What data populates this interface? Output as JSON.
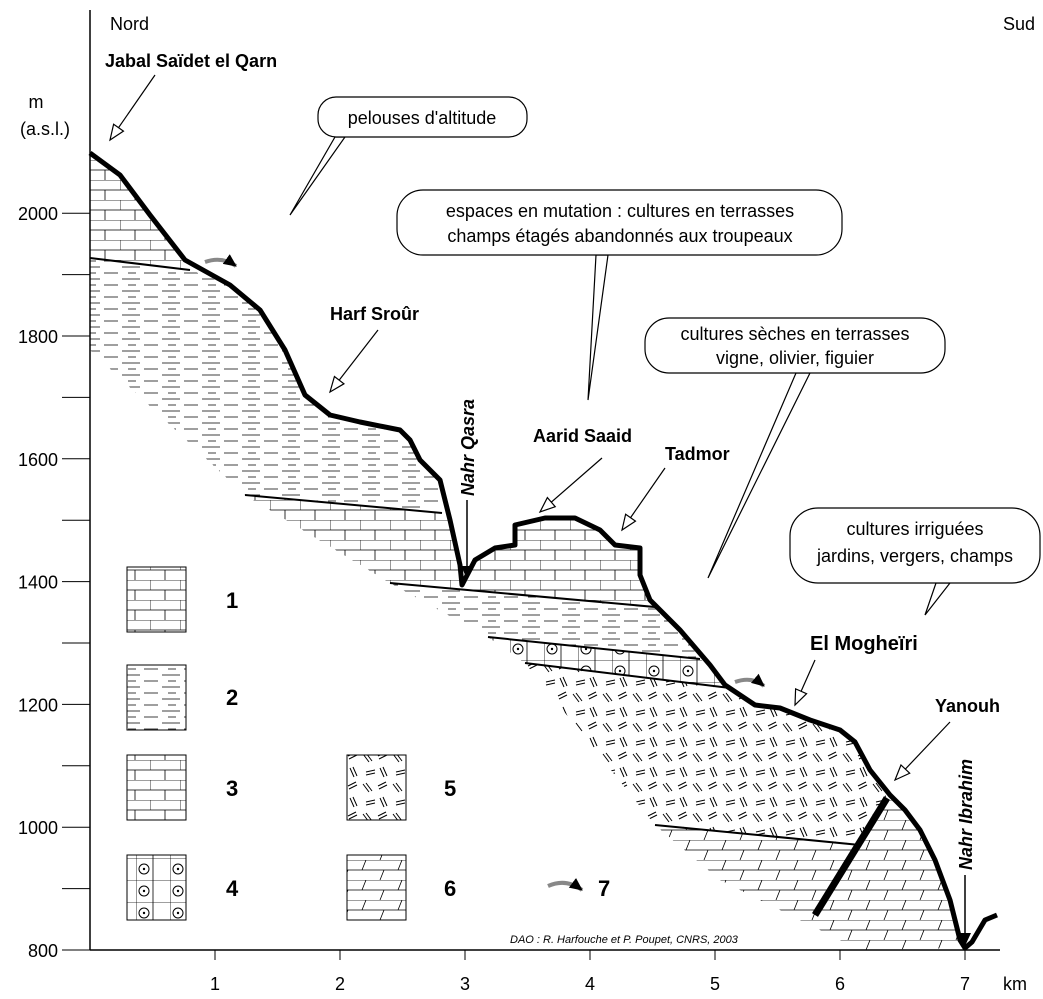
{
  "header": {
    "left": "Nord",
    "right": "Sud"
  },
  "y_axis": {
    "unit": "m",
    "unit_detail": "(a.s.l.)",
    "ticks": [
      "800",
      "1000",
      "1200",
      "1400",
      "1600",
      "1800",
      "2000"
    ]
  },
  "x_axis": {
    "unit": "km",
    "ticks": [
      "1",
      "2",
      "3",
      "4",
      "5",
      "6",
      "7"
    ]
  },
  "places": {
    "jabal": "Jabal Saïdet el Qarn",
    "harf": "Harf Sroûr",
    "aarid": "Aarid Saaid",
    "tadmor": "Tadmor",
    "mogheiri": "El Mogheïri",
    "yanouh": "Yanouh"
  },
  "rivers": {
    "qasra": "Nahr Qasra",
    "ibrahim": "Nahr Ibrahim"
  },
  "callouts": [
    {
      "lines": [
        "pelouses d'altitude"
      ]
    },
    {
      "lines": [
        "espaces en mutation : cultures en terrasses",
        "champs étagés abandonnés aux troupeaux"
      ]
    },
    {
      "lines": [
        "cultures sèches en terrasses",
        "vigne, olivier, figuier"
      ]
    },
    {
      "lines": [
        "cultures irriguées",
        "jardins, vergers, champs"
      ]
    }
  ],
  "legend": [
    "1",
    "2",
    "3",
    "4",
    "5",
    "6",
    "7"
  ],
  "credit": "DAO : R. Harfouche et P. Poupet, CNRS, 2003"
}
